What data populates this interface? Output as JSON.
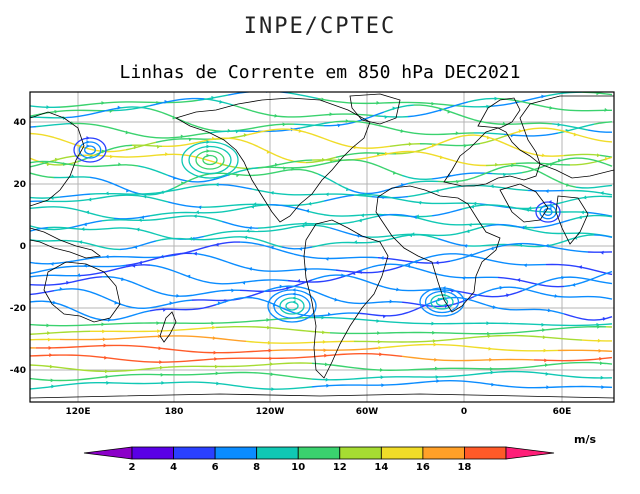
{
  "header": {
    "title": "INPE/CPTEC"
  },
  "map": {
    "title": "Linhas de Corrente em 850 hPa DEC2021",
    "lat_ticks": [
      "40",
      "20",
      "0",
      "-20",
      "-40"
    ],
    "lon_ticks": [
      "120E",
      "180",
      "120W",
      "60W",
      "0",
      "60E"
    ]
  },
  "colorbar": {
    "unit": "m/s",
    "labels": [
      "2",
      "4",
      "6",
      "8",
      "10",
      "12",
      "14",
      "16",
      "18"
    ],
    "colors": [
      "#8b00c8",
      "#5a00e6",
      "#2a40ff",
      "#0a8cff",
      "#10c8b4",
      "#3ad26e",
      "#a6dc32",
      "#f0dc28",
      "#ffa028",
      "#ff5a28",
      "#ff1e78"
    ]
  },
  "colors": {
    "frame": "#000000",
    "grid": "#b4b4b4",
    "coast": "#000000"
  }
}
